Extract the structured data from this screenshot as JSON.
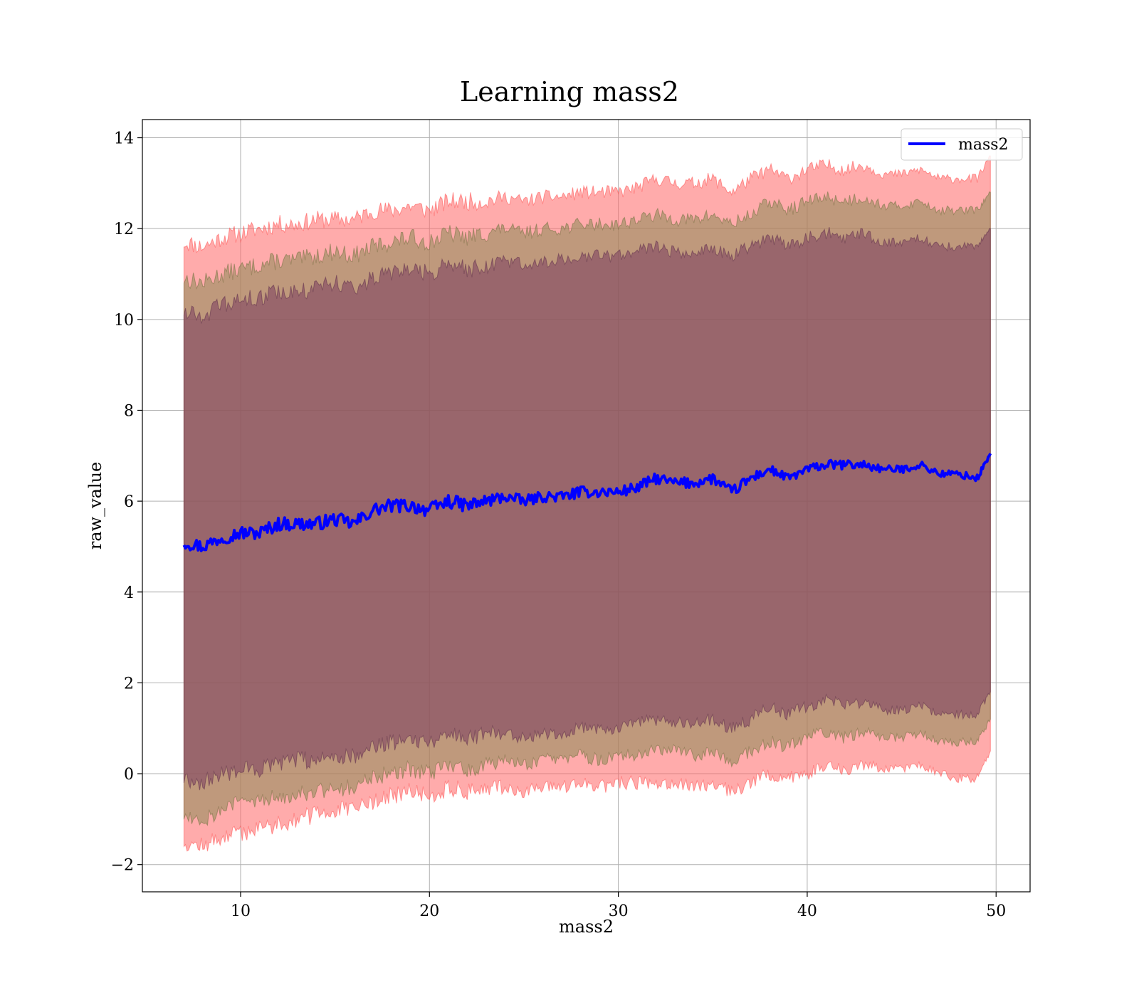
{
  "chart_data": {
    "type": "area",
    "title": "Learning mass2",
    "xlabel": "mass2",
    "ylabel": "raw_value",
    "xlim": [
      4.8,
      51.8
    ],
    "ylim": [
      -2.6,
      14.4
    ],
    "x_ticks": [
      10,
      20,
      30,
      40,
      50
    ],
    "y_ticks": [
      -2,
      0,
      2,
      4,
      6,
      8,
      10,
      12,
      14
    ],
    "x_tick_labels": [
      "10",
      "20",
      "30",
      "40",
      "50"
    ],
    "y_tick_labels": [
      "−2",
      "0",
      "2",
      "4",
      "6",
      "8",
      "10",
      "12",
      "14"
    ],
    "grid": true,
    "legend": {
      "placement": "top-right",
      "entries": [
        "mass2"
      ]
    },
    "colors": {
      "line": "#0000ff",
      "band_outer": "#ff6666",
      "band_middle": "#8a8a55",
      "band_inner": "#7a3d5f",
      "grid": "#b0b0b0"
    },
    "x": [
      7,
      8,
      9,
      10,
      11,
      12,
      13,
      14,
      15,
      16,
      17,
      18,
      19,
      20,
      21,
      22,
      23,
      24,
      25,
      26,
      27,
      28,
      29,
      30,
      31,
      32,
      33,
      34,
      35,
      36,
      37,
      38,
      39,
      40,
      41,
      42,
      43,
      44,
      45,
      46,
      47,
      48,
      49,
      49.7
    ],
    "series": [
      {
        "name": "mass2",
        "role": "line",
        "values": [
          5.1,
          5.0,
          5.2,
          5.3,
          5.3,
          5.5,
          5.5,
          5.5,
          5.6,
          5.5,
          5.8,
          5.9,
          5.9,
          5.8,
          6.0,
          5.9,
          6.0,
          6.1,
          6.0,
          6.1,
          6.1,
          6.2,
          6.2,
          6.2,
          6.3,
          6.5,
          6.4,
          6.4,
          6.5,
          6.2,
          6.5,
          6.7,
          6.5,
          6.7,
          6.8,
          6.8,
          6.8,
          6.7,
          6.7,
          6.8,
          6.6,
          6.6,
          6.5,
          7.05
        ],
        "noise": [
          0.15,
          0.15,
          0.15,
          0.15,
          0.15,
          0.15,
          0.15,
          0.15,
          0.15,
          0.15,
          0.15,
          0.15,
          0.15,
          0.15,
          0.15,
          0.15,
          0.15,
          0.12,
          0.12,
          0.12,
          0.12,
          0.12,
          0.12,
          0.12,
          0.12,
          0.12,
          0.12,
          0.12,
          0.12,
          0.12,
          0.12,
          0.1,
          0.1,
          0.1,
          0.1,
          0.1,
          0.1,
          0.08,
          0.08,
          0.08,
          0.08,
          0.08,
          0.08,
          0.05
        ]
      },
      {
        "role": "band_outer",
        "lower": [
          -1.5,
          -1.6,
          -1.4,
          -1.3,
          -1.2,
          -1.1,
          -1.0,
          -0.9,
          -0.8,
          -0.8,
          -0.6,
          -0.5,
          -0.4,
          -0.5,
          -0.3,
          -0.4,
          -0.3,
          -0.3,
          -0.4,
          -0.3,
          -0.3,
          -0.2,
          -0.3,
          -0.2,
          -0.2,
          -0.2,
          -0.2,
          -0.3,
          -0.2,
          -0.4,
          -0.2,
          0.0,
          -0.1,
          0.0,
          0.2,
          0.1,
          0.2,
          0.1,
          0.1,
          0.2,
          0.0,
          -0.1,
          -0.1,
          0.5
        ],
        "upper": [
          11.7,
          11.6,
          11.8,
          11.9,
          12.0,
          12.1,
          12.1,
          12.2,
          12.2,
          12.2,
          12.4,
          12.4,
          12.5,
          12.4,
          12.6,
          12.6,
          12.6,
          12.7,
          12.6,
          12.7,
          12.7,
          12.8,
          12.8,
          12.8,
          12.9,
          13.1,
          13.0,
          13.0,
          13.1,
          12.8,
          13.1,
          13.3,
          13.1,
          13.3,
          13.4,
          13.3,
          13.4,
          13.2,
          13.2,
          13.3,
          13.1,
          13.1,
          13.1,
          13.6
        ],
        "noise": [
          0.2,
          0.2,
          0.2,
          0.2,
          0.2,
          0.2,
          0.2,
          0.2,
          0.2,
          0.2,
          0.2,
          0.2,
          0.2,
          0.2,
          0.2,
          0.2,
          0.2,
          0.15,
          0.15,
          0.15,
          0.15,
          0.15,
          0.15,
          0.15,
          0.15,
          0.15,
          0.15,
          0.15,
          0.15,
          0.15,
          0.15,
          0.15,
          0.15,
          0.15,
          0.15,
          0.15,
          0.15,
          0.1,
          0.1,
          0.1,
          0.1,
          0.1,
          0.1,
          0.05
        ]
      },
      {
        "role": "band_middle",
        "lower": [
          -0.9,
          -1.0,
          -0.8,
          -0.6,
          -0.6,
          -0.5,
          -0.4,
          -0.4,
          -0.3,
          -0.3,
          -0.1,
          0.0,
          0.1,
          0.0,
          0.2,
          0.1,
          0.2,
          0.3,
          0.2,
          0.3,
          0.3,
          0.4,
          0.3,
          0.4,
          0.4,
          0.5,
          0.5,
          0.4,
          0.5,
          0.3,
          0.5,
          0.7,
          0.6,
          0.8,
          0.9,
          0.8,
          0.9,
          0.8,
          0.8,
          0.9,
          0.7,
          0.7,
          0.7,
          1.2
        ],
        "upper": [
          10.9,
          10.8,
          11.0,
          11.1,
          11.2,
          11.3,
          11.3,
          11.4,
          11.5,
          11.4,
          11.6,
          11.7,
          11.8,
          11.7,
          11.9,
          11.8,
          11.9,
          12.0,
          11.9,
          12.0,
          12.0,
          12.1,
          12.1,
          12.1,
          12.2,
          12.3,
          12.2,
          12.2,
          12.3,
          12.1,
          12.3,
          12.6,
          12.4,
          12.6,
          12.7,
          12.6,
          12.7,
          12.5,
          12.5,
          12.6,
          12.4,
          12.4,
          12.4,
          12.8
        ],
        "noise": [
          0.2,
          0.2,
          0.2,
          0.2,
          0.2,
          0.2,
          0.2,
          0.2,
          0.2,
          0.2,
          0.2,
          0.2,
          0.2,
          0.2,
          0.2,
          0.2,
          0.2,
          0.15,
          0.15,
          0.15,
          0.15,
          0.15,
          0.15,
          0.15,
          0.15,
          0.15,
          0.15,
          0.15,
          0.15,
          0.15,
          0.15,
          0.15,
          0.15,
          0.15,
          0.15,
          0.15,
          0.15,
          0.1,
          0.1,
          0.1,
          0.1,
          0.1,
          0.1,
          0.05
        ]
      },
      {
        "role": "band_inner",
        "lower": [
          -0.1,
          -0.2,
          0.0,
          0.1,
          0.1,
          0.2,
          0.3,
          0.3,
          0.4,
          0.4,
          0.6,
          0.7,
          0.8,
          0.7,
          0.9,
          0.8,
          0.9,
          0.9,
          0.8,
          0.9,
          0.9,
          1.0,
          1.0,
          1.0,
          1.1,
          1.2,
          1.1,
          1.1,
          1.2,
          1.0,
          1.2,
          1.5,
          1.3,
          1.5,
          1.6,
          1.5,
          1.6,
          1.4,
          1.4,
          1.5,
          1.3,
          1.3,
          1.3,
          1.8
        ],
        "upper": [
          10.2,
          10.1,
          10.3,
          10.4,
          10.5,
          10.6,
          10.6,
          10.7,
          10.8,
          10.7,
          10.9,
          11.0,
          11.1,
          11.0,
          11.2,
          11.1,
          11.2,
          11.3,
          11.2,
          11.3,
          11.3,
          11.4,
          11.4,
          11.4,
          11.5,
          11.6,
          11.5,
          11.5,
          11.6,
          11.4,
          11.6,
          11.8,
          11.6,
          11.8,
          11.9,
          11.8,
          11.9,
          11.7,
          11.7,
          11.8,
          11.6,
          11.6,
          11.6,
          12.0
        ],
        "noise": [
          0.2,
          0.2,
          0.2,
          0.2,
          0.2,
          0.2,
          0.2,
          0.2,
          0.2,
          0.2,
          0.2,
          0.2,
          0.2,
          0.2,
          0.2,
          0.2,
          0.2,
          0.15,
          0.15,
          0.15,
          0.15,
          0.15,
          0.15,
          0.15,
          0.15,
          0.15,
          0.15,
          0.15,
          0.15,
          0.15,
          0.15,
          0.15,
          0.15,
          0.15,
          0.15,
          0.15,
          0.15,
          0.1,
          0.1,
          0.1,
          0.1,
          0.1,
          0.1,
          0.05
        ]
      }
    ]
  }
}
